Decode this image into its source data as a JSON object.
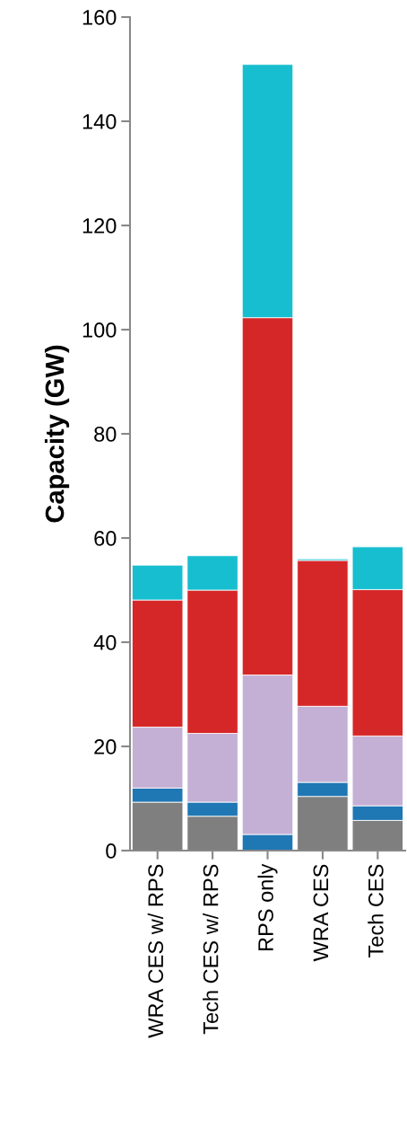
{
  "chart_data": {
    "type": "bar",
    "stacked": true,
    "ylabel": "Capacity (GW)",
    "categories": [
      "WRA CES w/ RPS",
      "Tech CES w/ RPS",
      "RPS only",
      "WRA CES",
      "Tech CES"
    ],
    "series": [
      {
        "color": "#7f7f7f",
        "values": [
          9.3,
          6.6,
          0,
          10.4,
          5.8
        ]
      },
      {
        "color": "#1f77b4",
        "values": [
          2.7,
          2.7,
          3.1,
          2.7,
          2.8
        ]
      },
      {
        "color": "#c5b0d5",
        "values": [
          11.7,
          13.2,
          30.6,
          14.6,
          13.4
        ]
      },
      {
        "color": "#d62728",
        "values": [
          24.4,
          27.5,
          68.6,
          28.0,
          28.1
        ]
      },
      {
        "color": "#17becf",
        "values": [
          6.7,
          6.6,
          48.6,
          0.3,
          8.2
        ]
      }
    ],
    "ylim": [
      0,
      160
    ],
    "yticks": [
      0,
      20,
      40,
      60,
      80,
      100,
      120,
      140,
      160
    ],
    "grid": false
  }
}
